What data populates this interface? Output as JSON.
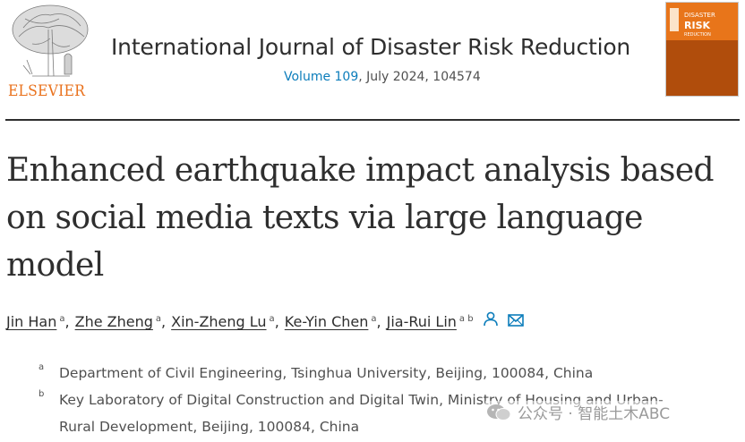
{
  "publisher": {
    "logo_text": "ELSEVIER",
    "brand_color": "#e9711c"
  },
  "journal": {
    "title": "International Journal of Disaster Risk Reduction",
    "volume_link": "Volume 109",
    "issue_rest": ", July 2024, 104574",
    "link_color": "#0c7dbb",
    "cover": {
      "line1": "DISASTER",
      "line2": "RISK",
      "line3": "REDUCTION",
      "color": "#e8751a"
    }
  },
  "article": {
    "title_lines": [
      "Enhanced earthquake impact analysis based",
      "on social media texts via large language",
      "model"
    ]
  },
  "authors": [
    {
      "name": "Jin Han",
      "aff": "a",
      "sep": ","
    },
    {
      "name": "Zhe Zheng",
      "aff": "a",
      "sep": ","
    },
    {
      "name": "Xin-Zheng Lu",
      "aff": "a",
      "sep": ","
    },
    {
      "name": "Ke-Yin Chen",
      "aff": "a",
      "sep": ","
    },
    {
      "name": "Jia-Rui Lin",
      "aff": "a b",
      "sep": ""
    }
  ],
  "author_icons": [
    "person-icon",
    "envelope-icon"
  ],
  "affiliations": [
    {
      "mark": "a",
      "lines": [
        "Department of Civil Engineering, Tsinghua University, Beijing, 100084, China"
      ]
    },
    {
      "mark": "b",
      "lines": [
        "Key Laboratory of Digital Construction and Digital Twin, Ministry of Housing and Urban-",
        "Rural Development, Beijing, 100084, China"
      ]
    }
  ],
  "watermark": {
    "text": "公众号 · 智能土木ABC"
  }
}
